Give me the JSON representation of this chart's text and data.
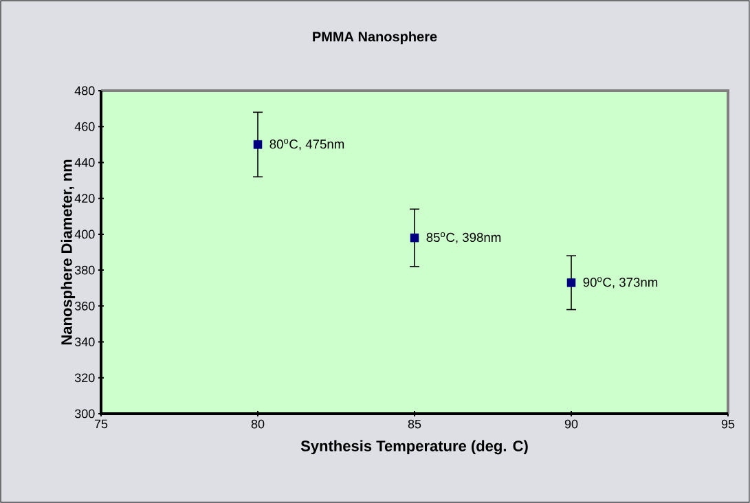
{
  "chart_data": {
    "type": "scatter",
    "title": "PMMA Nanosphere",
    "xlabel": "Synthesis Temperature (deg. C)",
    "ylabel": "Nanosphere Diameter, nm",
    "x": [
      80,
      85,
      90
    ],
    "values": [
      450,
      398,
      373
    ],
    "errors": [
      18,
      16,
      15
    ],
    "color": "#000080",
    "marker": "square",
    "xlim": [
      75,
      95
    ],
    "xticks": [
      75,
      80,
      85,
      90,
      95
    ],
    "ylim": [
      300,
      480
    ],
    "yticks": [
      300,
      320,
      340,
      360,
      380,
      400,
      420,
      440,
      460,
      480
    ],
    "annotations": [
      {
        "text": "80$^{o}$C, 475nm",
        "x": 80,
        "y": 450
      },
      {
        "text": "85$^{o}$C, 398nm",
        "x": 85,
        "y": 398
      },
      {
        "text": "90$^{o}$C, 373nm",
        "x": 90,
        "y": 373
      }
    ]
  }
}
